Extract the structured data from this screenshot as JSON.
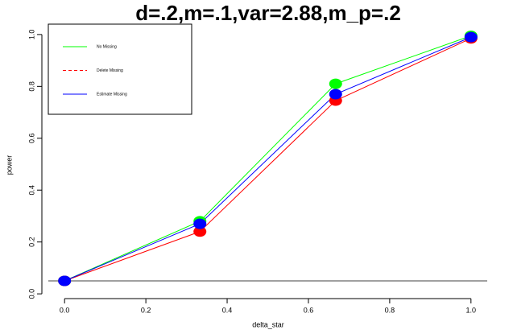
{
  "chart_data": {
    "type": "line",
    "title": "d=.2,m=.1,var=2.88,m_p=.2",
    "x_label": "delta_star",
    "y_label": "power",
    "x": [
      0,
      0.333,
      0.667,
      1.0
    ],
    "series": [
      {
        "name": "No Missing",
        "color": "#00ff00",
        "dash": false,
        "values": [
          0.05,
          0.28,
          0.81,
          0.995
        ]
      },
      {
        "name": "Delete Missing",
        "color": "#ff0000",
        "dash": true,
        "values": [
          0.05,
          0.24,
          0.745,
          0.985
        ]
      },
      {
        "name": "Estimate Missing",
        "color": "#0000ff",
        "dash": false,
        "values": [
          0.05,
          0.27,
          0.77,
          0.99
        ]
      }
    ],
    "hline": 0.05,
    "xlim": [
      -0.04,
      1.04
    ],
    "ylim": [
      -0.04,
      1.04
    ],
    "xticks": [
      {
        "value": 0,
        "label": "0.0"
      },
      0.2,
      0.4,
      0.6,
      0.8,
      {
        "value": 1,
        "label": "1.0"
      }
    ],
    "yticks": [
      {
        "value": 0,
        "label": "0.0"
      },
      0.2,
      0.4,
      0.6,
      0.8,
      {
        "value": 1,
        "label": "1.0"
      }
    ],
    "legend": "top-left"
  }
}
